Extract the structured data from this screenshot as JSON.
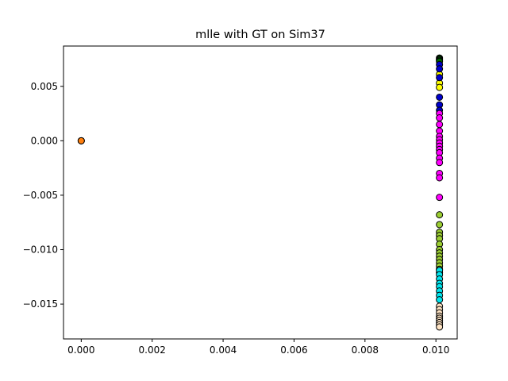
{
  "chart_data": {
    "type": "scatter",
    "title": "mlle with GT on Sim37",
    "xlabel": "",
    "ylabel": "",
    "xlim": [
      -0.0005,
      0.0106
    ],
    "ylim": [
      -0.0182,
      0.0087
    ],
    "xticks": [
      0.0,
      0.002,
      0.004,
      0.006,
      0.008,
      0.01
    ],
    "xtick_labels": [
      "0.000",
      "0.002",
      "0.004",
      "0.006",
      "0.008",
      "0.010"
    ],
    "yticks": [
      0.005,
      0.0,
      -0.005,
      -0.01,
      -0.015
    ],
    "ytick_labels": [
      "0.005",
      "0.000",
      "−0.005",
      "−0.010",
      "−0.015"
    ],
    "grid": false,
    "legend": "none",
    "series": [
      {
        "color": "#ff7f0e",
        "x": [
          0.0,
          0.0,
          0.0
        ],
        "y": [
          0.0,
          0.0,
          0.0
        ]
      },
      {
        "color": "#006400",
        "x": [
          0.0101,
          0.0101,
          0.0101,
          0.0101
        ],
        "y": [
          0.0076,
          0.0075,
          0.0074,
          0.0073
        ]
      },
      {
        "color": "#ffff00",
        "x": [
          0.0101,
          0.0101,
          0.0101
        ],
        "y": [
          0.0061,
          0.0053,
          0.0049
        ]
      },
      {
        "color": "#0000cd",
        "x": [
          0.0101,
          0.0101,
          0.0101,
          0.0101,
          0.0101,
          0.0101
        ],
        "y": [
          0.007,
          0.0066,
          0.0058,
          0.004,
          0.0033,
          0.0028
        ]
      },
      {
        "color": "#ff00ff",
        "x": [
          0.0101,
          0.0101,
          0.0101,
          0.0101,
          0.0101,
          0.0101,
          0.0101,
          0.0101,
          0.0101,
          0.0101,
          0.0101,
          0.0101,
          0.0101,
          0.0101,
          0.0101
        ],
        "y": [
          0.0025,
          0.0021,
          0.0015,
          0.0009,
          0.0004,
          0.0001,
          -0.0002,
          -0.0005,
          -0.0008,
          -0.0011,
          -0.0016,
          -0.002,
          -0.003,
          -0.0034,
          -0.0052
        ]
      },
      {
        "color": "#9acd32",
        "x": [
          0.0101,
          0.0101,
          0.0101,
          0.0101,
          0.0101,
          0.0101,
          0.0101,
          0.0101,
          0.0101,
          0.0101,
          0.0101,
          0.0101,
          0.0101,
          0.0101
        ],
        "y": [
          -0.0068,
          -0.0077,
          -0.0084,
          -0.0087,
          -0.009,
          -0.0095,
          -0.01,
          -0.0103,
          -0.0106,
          -0.0109,
          -0.0112,
          -0.0115,
          -0.0118,
          -0.0121
        ]
      },
      {
        "color": "#00e5ee",
        "x": [
          0.0101,
          0.0101,
          0.0101,
          0.0101,
          0.0101,
          0.0101,
          0.0101,
          0.0101
        ],
        "y": [
          -0.0119,
          -0.0123,
          -0.0127,
          -0.0131,
          -0.0134,
          -0.0138,
          -0.0142,
          -0.0146
        ]
      },
      {
        "color": "#ffe4c4",
        "x": [
          0.0101,
          0.0101,
          0.0101,
          0.0101,
          0.0101,
          0.0101,
          0.0101,
          0.0101,
          0.0101
        ],
        "y": [
          -0.0152,
          -0.0155,
          -0.0158,
          -0.0161,
          -0.0163,
          -0.0165,
          -0.0167,
          -0.0169,
          -0.0171
        ]
      }
    ]
  }
}
